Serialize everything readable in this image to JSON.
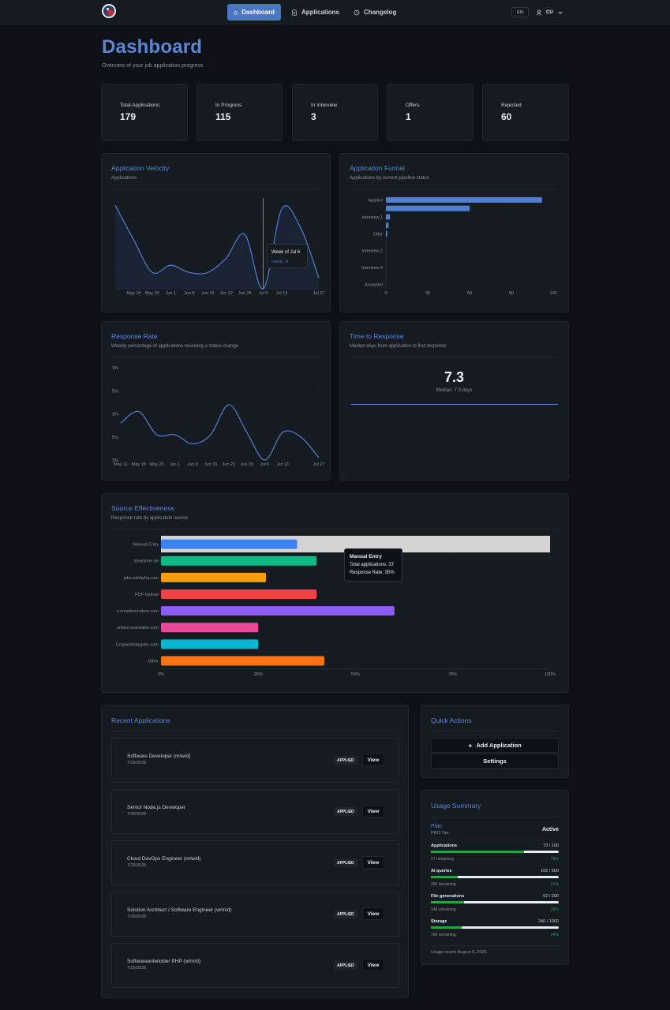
{
  "nav": {
    "items": [
      {
        "label": "Dashboard",
        "icon": "home-icon",
        "active": true
      },
      {
        "label": "Applications",
        "icon": "document-icon",
        "active": false
      },
      {
        "label": "Changelog",
        "icon": "clock-icon",
        "active": false
      }
    ],
    "lang": "EN",
    "user": "CU"
  },
  "page": {
    "title": "Dashboard",
    "subtitle": "Overview of your job application progress"
  },
  "stats": [
    {
      "label": "Total Applications",
      "value": "179"
    },
    {
      "label": "In Progress",
      "value": "115"
    },
    {
      "label": "In Interview",
      "value": "3"
    },
    {
      "label": "Offers",
      "value": "1"
    },
    {
      "label": "Rejected",
      "value": "60"
    }
  ],
  "velocity": {
    "title": "Application Velocity",
    "subtitle": "Applications",
    "tooltip_title": "Week of Jul 6",
    "tooltip_value": "count : 0"
  },
  "funnel": {
    "title": "Application Funnel",
    "subtitle": "Applications by current pipeline status"
  },
  "response": {
    "title": "Response Rate",
    "subtitle": "Weekly percentage of applications receiving a status change"
  },
  "time_to_response": {
    "title": "Time to Response",
    "subtitle": "Median days from application to first response",
    "value": "7.3",
    "caption": "Median: 7.3 days"
  },
  "source": {
    "title": "Source Effectiveness",
    "subtitle": "Response rate by application source",
    "tooltip_title": "Manual Entry",
    "tooltip_line1": "Total applications: 37",
    "tooltip_line2": "Response Rate: 35%"
  },
  "chart_data": [
    {
      "type": "area",
      "title": "Application Velocity",
      "categories": [
        "May 18",
        "May 25",
        "Jun 1",
        "Jun 8",
        "Jun 15",
        "Jun 22",
        "Jun 29",
        "Jul 6",
        "Jul 13",
        "Jul 27"
      ],
      "x": [
        "May 11",
        "May 18",
        "May 25",
        "Jun 1",
        "Jun 8",
        "Jun 15",
        "Jun 22",
        "Jun 29",
        "Jul 6",
        "Jul 13",
        "Jul 20",
        "Jul 27"
      ],
      "values": [
        46,
        27,
        9,
        13,
        9,
        9,
        17,
        30,
        0,
        44,
        34,
        6
      ],
      "ylim": [
        0,
        50
      ],
      "grid": true
    },
    {
      "type": "bar",
      "orientation": "horizontal",
      "title": "Application Funnel",
      "categories": [
        "Applied",
        "",
        "Interview 1",
        "",
        "Offer",
        "",
        "Interview 2",
        "",
        "Interview 4",
        "",
        "Accepted"
      ],
      "values": [
        112,
        60,
        3,
        2,
        1,
        0,
        0,
        0,
        0,
        0,
        0
      ],
      "xticks": [
        0,
        30,
        60,
        90,
        120
      ],
      "xlim": [
        0,
        120
      ],
      "grid": true
    },
    {
      "type": "line",
      "title": "Response Rate",
      "x": [
        "May 11",
        "May 18",
        "May 25",
        "Jun 1",
        "Jun 8",
        "Jun 15",
        "Jun 22",
        "Jun 29",
        "Jul 6",
        "Jul 13",
        "Jul 20",
        "Jul 27"
      ],
      "values": [
        16,
        21,
        11,
        11,
        7,
        11,
        24,
        12,
        0,
        12,
        10,
        1
      ],
      "yticks": [
        "3%",
        "5%",
        "3%",
        "5%",
        "3%"
      ],
      "ylim": [
        0,
        40
      ],
      "grid": true
    },
    {
      "type": "bar",
      "orientation": "horizontal",
      "title": "Source Effectiveness",
      "categories": [
        "Manual Entry",
        "stepstone.de",
        "jobs.ashbyhq.com",
        "PDF Upload",
        "s.smartrecruiters.com",
        "arbour.teamtailor.com",
        "5.myworkdayjobs.com",
        "Other"
      ],
      "values": [
        35,
        40,
        27,
        40,
        60,
        25,
        25,
        42
      ],
      "colors": [
        "#3b82f6",
        "#10b981",
        "#f59e0b",
        "#ef4444",
        "#8b5cf6",
        "#ec4899",
        "#06b6d4",
        "#f97316"
      ],
      "xticks": [
        "0%",
        "25%",
        "50%",
        "75%",
        "100%"
      ],
      "xlim": [
        0,
        100
      ],
      "grid": true
    }
  ],
  "recent": {
    "title": "Recent Applications",
    "items": [
      {
        "title": "Software Developer (m/w/d)",
        "date": "7/29/2026",
        "status": "APPLIED",
        "action": "View"
      },
      {
        "title": "Senior Node.js Developer",
        "date": "7/28/2026",
        "status": "APPLIED",
        "action": "View"
      },
      {
        "title": "Cloud DevOps Engineer (m/w/d)",
        "date": "7/28/2026",
        "status": "APPLIED",
        "action": "View"
      },
      {
        "title": "Solution Architect / Software Engineer (w/m/d)",
        "date": "7/25/2026",
        "status": "APPLIED",
        "action": "View"
      },
      {
        "title": "Softwareentwickler PHP (w/m/d)",
        "date": "7/25/2026",
        "status": "APPLIED",
        "action": "View"
      }
    ]
  },
  "quick_actions": {
    "title": "Quick Actions",
    "add_label": "Add Application",
    "settings_label": "Settings"
  },
  "usage": {
    "title": "Usage Summary",
    "plan_label": "Plan",
    "plan_tier": "PRO Tier",
    "plan_status": "Active",
    "items": [
      {
        "label": "Applications",
        "value": "73 / 100",
        "remaining": "27 remaining",
        "pct": "73%",
        "fraction": 0.73
      },
      {
        "label": "AI queries",
        "value": "105 / 500",
        "remaining": "395 remaining",
        "pct": "21%",
        "fraction": 0.21
      },
      {
        "label": "File generations",
        "value": "52 / 200",
        "remaining": "148 remaining",
        "pct": "26%",
        "fraction": 0.26
      },
      {
        "label": "Storage",
        "value": "240 / 1000",
        "remaining": "760 remaining",
        "pct": "24%",
        "fraction": 0.24
      }
    ],
    "reset_note": "Usage resets August 6, 2026"
  }
}
